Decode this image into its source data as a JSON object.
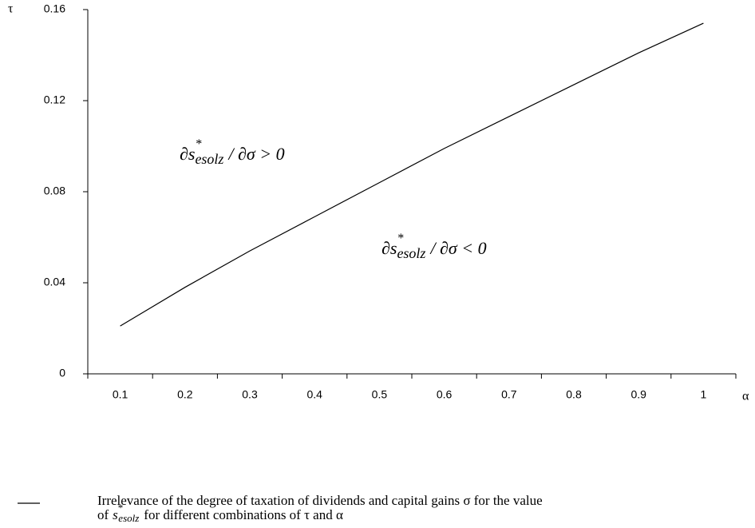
{
  "chart_data": {
    "type": "line",
    "x_label": "α",
    "y_label": "τ",
    "categories": [
      "0.1",
      "0.2",
      "0.3",
      "0.4",
      "0.5",
      "0.6",
      "0.7",
      "0.8",
      "0.9",
      "1"
    ],
    "series": [
      {
        "name": "Irrelevance of the degree of taxation of dividends and capital gains σ for the value",
        "color": "#000000",
        "values": [
          0.021,
          0.038,
          0.054,
          0.069,
          0.084,
          0.099,
          0.113,
          0.127,
          0.141,
          0.154
        ]
      }
    ],
    "legend_continuation": {
      "pre": "of",
      "base": "s",
      "sup": "*",
      "sub": "esolz",
      "post": "for different combinations of τ and α"
    },
    "ylim": [
      0,
      0.16
    ],
    "yticks": [
      0,
      0.04,
      0.08,
      0.12,
      0.16
    ],
    "annotations": [
      {
        "base": "∂s",
        "sup": "*",
        "sub": "esolz",
        "rest": "/ ∂σ > 0"
      },
      {
        "base": "∂s",
        "sup": "*",
        "sub": "esolz",
        "rest": "/ ∂σ < 0"
      }
    ]
  }
}
